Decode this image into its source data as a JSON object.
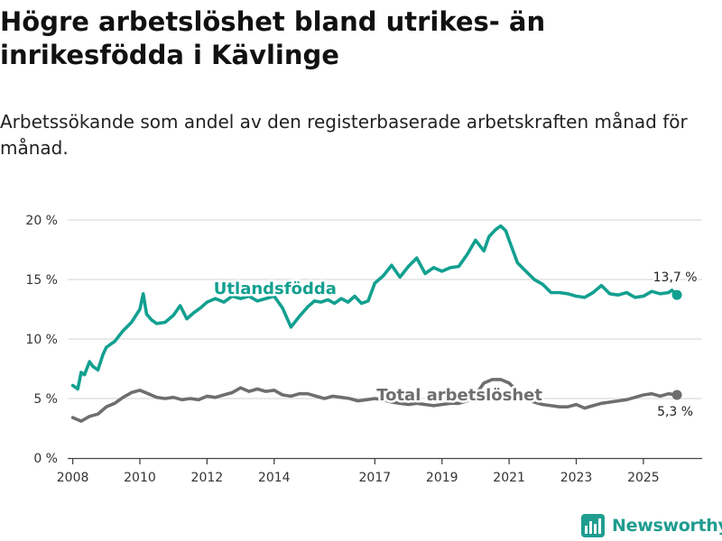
{
  "header": {
    "title": "Högre arbetslöshet bland utrikes- än inrikesfödda i Kävlinge",
    "subtitle": "Arbetssökande som andel av den registerbaserade arbetskraften månad för månad."
  },
  "brand": {
    "name": "Newsworthy",
    "icon": "bar-chart-logo-icon",
    "color": "#1f9d8f"
  },
  "chart_data": {
    "type": "line",
    "title": "Högre arbetslöshet bland utrikes- än inrikesfödda i Kävlinge",
    "xlabel": "",
    "ylabel": "",
    "xlim": [
      2007.85,
      2026.75
    ],
    "ylim": [
      0,
      20
    ],
    "grid": true,
    "y_ticks": [
      {
        "value": 0,
        "label": "0 %"
      },
      {
        "value": 5,
        "label": "5 %"
      },
      {
        "value": 10,
        "label": "10 %"
      },
      {
        "value": 15,
        "label": "15 %"
      },
      {
        "value": 20,
        "label": "20 %"
      }
    ],
    "x_ticks": [
      {
        "value": 2008,
        "label": "2008"
      },
      {
        "value": 2010,
        "label": "2010"
      },
      {
        "value": 2012,
        "label": "2012"
      },
      {
        "value": 2014,
        "label": "2014"
      },
      {
        "value": 2017,
        "label": "2017"
      },
      {
        "value": 2019,
        "label": "2019"
      },
      {
        "value": 2021,
        "label": "2021"
      },
      {
        "value": 2023,
        "label": "2023"
      },
      {
        "value": 2025,
        "label": "2025"
      }
    ],
    "series": [
      {
        "name": "Utlandsfödda",
        "color": "#12a090",
        "last_label": "13,7 %",
        "x": [
          2008.0,
          2008.15,
          2008.25,
          2008.35,
          2008.5,
          2008.6,
          2008.75,
          2008.9,
          2009.0,
          2009.25,
          2009.5,
          2009.75,
          2010.0,
          2010.1,
          2010.2,
          2010.35,
          2010.5,
          2010.75,
          2011.0,
          2011.2,
          2011.4,
          2011.6,
          2011.8,
          2012.0,
          2012.25,
          2012.5,
          2012.75,
          2013.0,
          2013.25,
          2013.5,
          2013.75,
          2014.0,
          2014.25,
          2014.5,
          2014.75,
          2015.0,
          2015.2,
          2015.4,
          2015.6,
          2015.8,
          2016.0,
          2016.2,
          2016.4,
          2016.6,
          2016.8,
          2017.0,
          2017.25,
          2017.5,
          2017.75,
          2018.0,
          2018.25,
          2018.5,
          2018.75,
          2019.0,
          2019.25,
          2019.5,
          2019.75,
          2020.0,
          2020.25,
          2020.4,
          2020.6,
          2020.75,
          2020.9,
          2021.0,
          2021.25,
          2021.5,
          2021.75,
          2022.0,
          2022.25,
          2022.5,
          2022.75,
          2023.0,
          2023.25,
          2023.5,
          2023.75,
          2024.0,
          2024.25,
          2024.5,
          2024.75,
          2025.0,
          2025.25,
          2025.5,
          2025.75,
          2025.85,
          2026.0
        ],
        "values": [
          6.1,
          5.8,
          7.2,
          7.0,
          8.1,
          7.7,
          7.4,
          8.7,
          9.3,
          9.8,
          10.7,
          11.4,
          12.5,
          13.8,
          12.1,
          11.6,
          11.3,
          11.4,
          12.0,
          12.8,
          11.7,
          12.2,
          12.6,
          13.1,
          13.4,
          13.1,
          13.6,
          13.4,
          13.6,
          13.2,
          13.4,
          13.6,
          12.6,
          11.0,
          11.9,
          12.7,
          13.2,
          13.1,
          13.3,
          13.0,
          13.4,
          13.1,
          13.6,
          13.0,
          13.2,
          14.7,
          15.3,
          16.2,
          15.2,
          16.1,
          16.8,
          15.5,
          16.0,
          15.7,
          16.0,
          16.1,
          17.1,
          18.3,
          17.4,
          18.6,
          19.2,
          19.5,
          19.1,
          18.3,
          16.4,
          15.7,
          15.0,
          14.6,
          13.9,
          13.9,
          13.8,
          13.6,
          13.5,
          13.9,
          14.5,
          13.8,
          13.7,
          13.9,
          13.5,
          13.6,
          14.0,
          13.8,
          13.9,
          14.1,
          13.7
        ]
      },
      {
        "name": "Total arbetslöshet",
        "color": "#6e6e6e",
        "last_label": "5,3 %",
        "x": [
          2008.0,
          2008.25,
          2008.5,
          2008.75,
          2009.0,
          2009.25,
          2009.5,
          2009.75,
          2010.0,
          2010.25,
          2010.5,
          2010.75,
          2011.0,
          2011.25,
          2011.5,
          2011.75,
          2012.0,
          2012.25,
          2012.5,
          2012.75,
          2013.0,
          2013.25,
          2013.5,
          2013.75,
          2014.0,
          2014.25,
          2014.5,
          2014.75,
          2015.0,
          2015.25,
          2015.5,
          2015.75,
          2016.0,
          2016.25,
          2016.5,
          2016.75,
          2017.0,
          2017.25,
          2017.5,
          2017.75,
          2018.0,
          2018.25,
          2018.5,
          2018.75,
          2019.0,
          2019.25,
          2019.5,
          2019.75,
          2020.0,
          2020.25,
          2020.5,
          2020.75,
          2021.0,
          2021.25,
          2021.5,
          2021.75,
          2022.0,
          2022.25,
          2022.5,
          2022.75,
          2023.0,
          2023.25,
          2023.5,
          2023.75,
          2024.0,
          2024.25,
          2024.5,
          2024.75,
          2025.0,
          2025.25,
          2025.5,
          2025.75,
          2026.0
        ],
        "values": [
          3.4,
          3.1,
          3.5,
          3.7,
          4.3,
          4.6,
          5.1,
          5.5,
          5.7,
          5.4,
          5.1,
          5.0,
          5.1,
          4.9,
          5.0,
          4.9,
          5.2,
          5.1,
          5.3,
          5.5,
          5.9,
          5.6,
          5.8,
          5.6,
          5.7,
          5.3,
          5.2,
          5.4,
          5.4,
          5.2,
          5.0,
          5.2,
          5.1,
          5.0,
          4.8,
          4.9,
          5.0,
          4.9,
          4.7,
          4.6,
          4.5,
          4.6,
          4.5,
          4.4,
          4.5,
          4.6,
          4.6,
          4.8,
          5.3,
          6.3,
          6.6,
          6.6,
          6.3,
          5.6,
          5.0,
          4.7,
          4.5,
          4.4,
          4.3,
          4.3,
          4.5,
          4.2,
          4.4,
          4.6,
          4.7,
          4.8,
          4.9,
          5.1,
          5.3,
          5.4,
          5.2,
          5.4,
          5.3
        ]
      }
    ],
    "annotations": [
      {
        "text": "Utlandsfödda",
        "series": 0,
        "x": 2012.2,
        "y": 13.8
      },
      {
        "text": "Total arbetslöshet",
        "series": 1,
        "x": 2017.05,
        "y": 4.85
      }
    ]
  }
}
